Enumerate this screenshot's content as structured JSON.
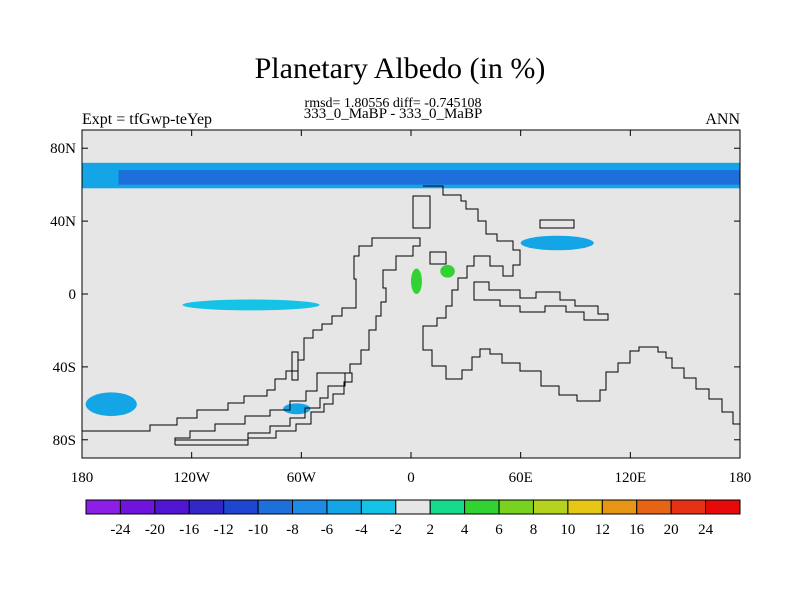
{
  "header": {
    "title": "Planetary Albedo (in %)",
    "stats": "rmsd= 1.80556 diff= -0.745108",
    "subtitle": "333_0_MaBP - 333_0_MaBP",
    "experiment": "Expt = tfGwp-teYep",
    "season": "ANN"
  },
  "chart_data": {
    "type": "heatmap",
    "title": "Planetary Albedo (in %)",
    "xlim": [
      -180,
      180
    ],
    "ylim": [
      -90,
      90
    ],
    "x_ticks": [
      -180,
      -120,
      -60,
      0,
      60,
      120,
      180
    ],
    "x_tick_labels": [
      "180",
      "120W",
      "60W",
      "0",
      "60E",
      "120E",
      "180"
    ],
    "y_ticks": [
      80,
      40,
      0,
      -40,
      -80
    ],
    "y_tick_labels": [
      "80N",
      "40N",
      "0",
      "40S",
      "80S"
    ],
    "background_color": "#e6e6e6",
    "colorbar": {
      "levels": [
        -24,
        -20,
        -16,
        -12,
        -10,
        -8,
        -6,
        -4,
        -2,
        2,
        4,
        6,
        8,
        10,
        12,
        16,
        20,
        24
      ],
      "level_labels": [
        "-24",
        "-20",
        "-16",
        "-12",
        "-10",
        "-8",
        "-6",
        "-4",
        "-2",
        "2",
        "4",
        "6",
        "8",
        "10",
        "12",
        "16",
        "20",
        "24"
      ],
      "colors": [
        "#8c1ee6",
        "#6e14dc",
        "#5014d2",
        "#3228c8",
        "#1e46d2",
        "#1e6edc",
        "#1e8ce6",
        "#14a5e6",
        "#14c3e6",
        "#e6e6e6",
        "#14dc8c",
        "#32d232",
        "#78d21e",
        "#b4d21e",
        "#e6c814",
        "#e69614",
        "#e66414",
        "#e63214",
        "#e60a0a"
      ]
    },
    "fields": [
      {
        "region": "northern high-latitude band",
        "lon": [
          -180,
          180
        ],
        "lat": [
          58,
          72
        ],
        "value": -6
      },
      {
        "region": "northern band core",
        "lon": [
          -160,
          180
        ],
        "lat": [
          60,
          68
        ],
        "value": -10
      },
      {
        "region": "mid-latitude streak",
        "lon": [
          60,
          100
        ],
        "lat": [
          24,
          32
        ],
        "value": -5
      },
      {
        "region": "equatorial streak",
        "lon": [
          -125,
          -50
        ],
        "lat": [
          -9,
          -3
        ],
        "value": -3
      },
      {
        "region": "southern high-latitude patch",
        "lon": [
          -178,
          -150
        ],
        "lat": [
          -67,
          -54
        ],
        "value": -6
      },
      {
        "region": "southern patch 2",
        "lon": [
          -70,
          -55
        ],
        "lat": [
          -66,
          -60
        ],
        "value": -5
      },
      {
        "region": "equatorial positive patch",
        "lon": [
          0,
          6
        ],
        "lat": [
          0,
          14
        ],
        "value": 4
      },
      {
        "region": "positive patch 2",
        "lon": [
          16,
          24
        ],
        "lat": [
          9,
          16
        ],
        "value": 4
      }
    ]
  }
}
